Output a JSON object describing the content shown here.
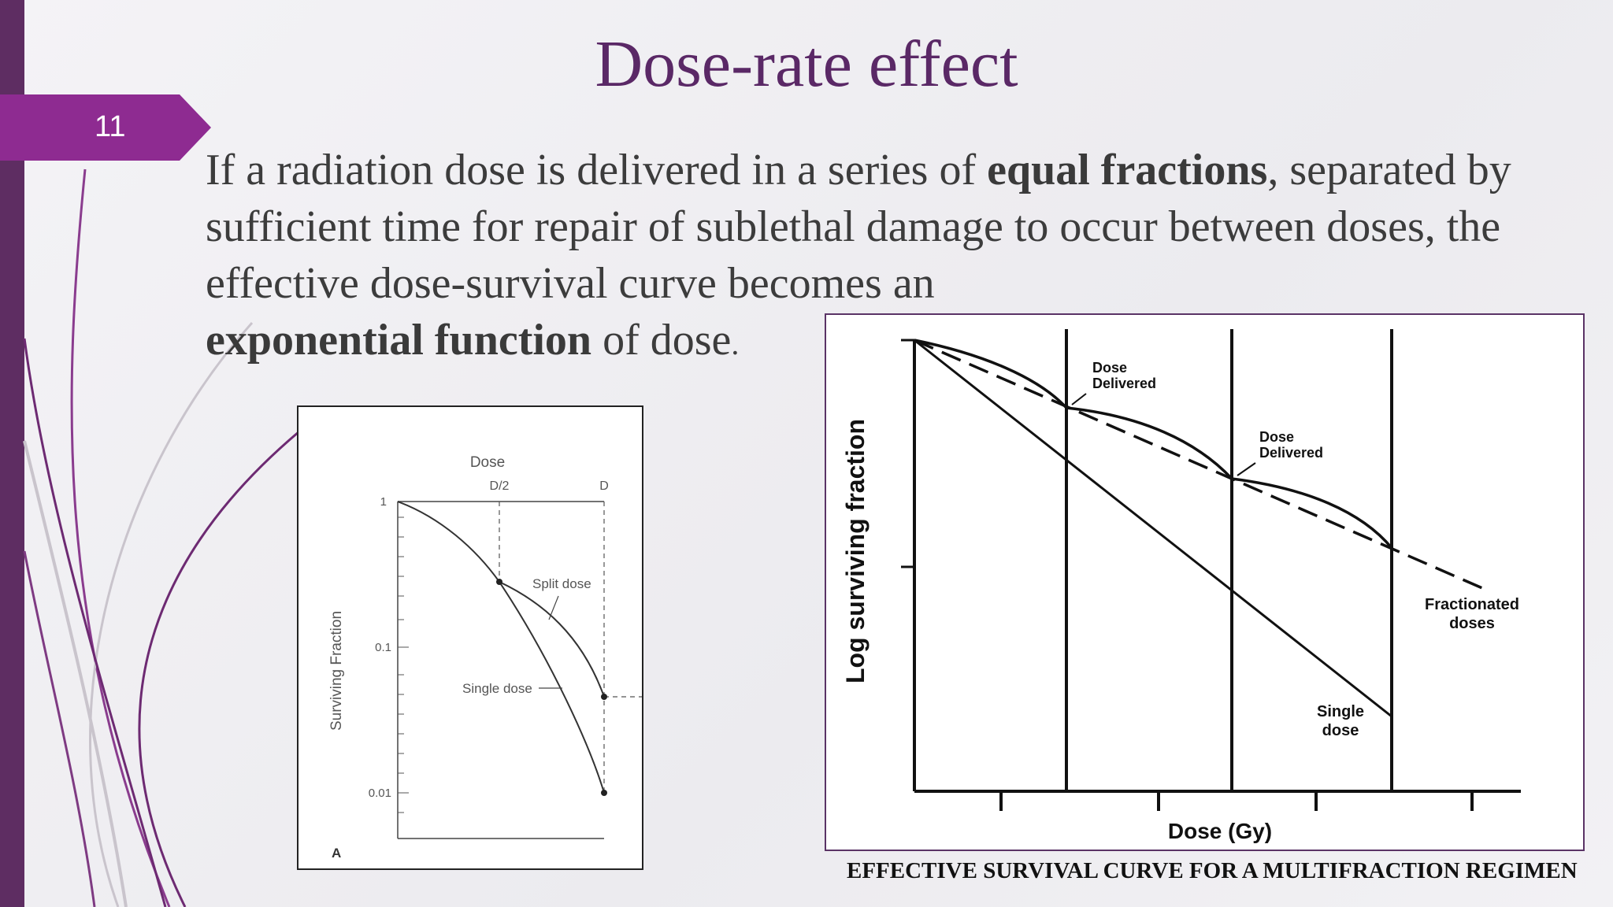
{
  "slide": {
    "number": "11",
    "title": "Dose-rate effect",
    "body": {
      "p1": "If a radiation dose is delivered in a series of ",
      "b1": "equal fractions",
      "p2": ", separated by sufficient time for repair of sublethal damage to occur between doses, the effective dose-survival curve becomes an ",
      "b2": "exponential function",
      "p3": " of dose",
      "p4": "."
    },
    "caption": "EFFECTIVE SURVIVAL CURVE FOR A MULTIFRACTION REGIMEN"
  },
  "figure_a": {
    "top_label": "Dose",
    "tick_half": "D/2",
    "tick_full": "D",
    "y_label": "Surviving Fraction",
    "y_ticks": [
      "1",
      "0.1",
      "0.01"
    ],
    "split_label": "Split dose",
    "single_label": "Single dose",
    "panel_letter": "A"
  },
  "figure_b": {
    "y_label": "Log surviving fraction",
    "x_label": "Dose (Gy)",
    "dose_delivered_1a": "Dose",
    "dose_delivered_1b": "Delivered",
    "dose_delivered_2a": "Dose",
    "dose_delivered_2b": "Delivered",
    "fractionated_a": "Fractionated",
    "fractionated_b": "doses",
    "single_a": "Single",
    "single_b": "dose"
  },
  "colors": {
    "accent": "#5a2866",
    "tab": "#8e2b91",
    "bar": "#5e2d62"
  }
}
